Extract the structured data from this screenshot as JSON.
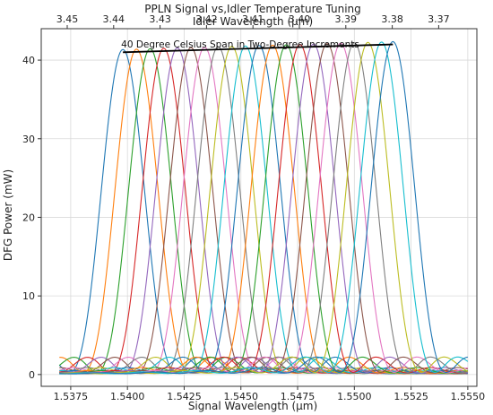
{
  "chart_data": {
    "type": "line",
    "title": "PPLN Signal vs,Idler Temperature Tuning",
    "top_axis_label": "Idler Wavelength (μm)",
    "xlabel": "Signal Wavelength (μm)",
    "ylabel": "DFG Power (mW)",
    "annotation": "40 Degree Celsius Span in Two-Degree Increments",
    "xlim": [
      1.5362,
      1.5554
    ],
    "ylim": [
      -1.5,
      44
    ],
    "x_ticks": [
      1.5375,
      1.54,
      1.5425,
      1.545,
      1.5475,
      1.55,
      1.5525,
      1.555
    ],
    "x_tick_labels": [
      "1.5375",
      "1.5400",
      "1.5425",
      "1.5450",
      "1.5475",
      "1.5500",
      "1.5525",
      "1.5550"
    ],
    "y_ticks": [
      0,
      10,
      20,
      30,
      40
    ],
    "y_tick_labels": [
      "0",
      "10",
      "20",
      "30",
      "40"
    ],
    "top_ticks": [
      3.45,
      3.44,
      3.43,
      3.42,
      3.41,
      3.4,
      3.39,
      3.38,
      3.37
    ],
    "top_tick_labels": [
      "3.45",
      "3.44",
      "3.43",
      "3.42",
      "3.41",
      "3.40",
      "3.39",
      "3.38",
      "3.37"
    ],
    "grid": true,
    "x_data_range": [
      1.537,
      1.555
    ],
    "colors": [
      "#1f77b4",
      "#ff7f0e",
      "#2ca02c",
      "#d62728",
      "#9467bd",
      "#8c564b",
      "#e377c2",
      "#7f7f7f",
      "#bcbd22",
      "#17becf"
    ],
    "envelope_color": "#000000",
    "series": [
      {
        "peak_x": 1.5398,
        "peak_y": 41.0
      },
      {
        "peak_x": 1.5404,
        "peak_y": 41.05
      },
      {
        "peak_x": 1.541,
        "peak_y": 41.1
      },
      {
        "peak_x": 1.5416,
        "peak_y": 41.15
      },
      {
        "peak_x": 1.5422,
        "peak_y": 41.2
      },
      {
        "peak_x": 1.5428,
        "peak_y": 41.25
      },
      {
        "peak_x": 1.5434,
        "peak_y": 41.3
      },
      {
        "peak_x": 1.544,
        "peak_y": 41.35
      },
      {
        "peak_x": 1.5446,
        "peak_y": 41.4
      },
      {
        "peak_x": 1.5452,
        "peak_y": 41.45
      },
      {
        "peak_x": 1.5458,
        "peak_y": 41.5
      },
      {
        "peak_x": 1.5464,
        "peak_y": 41.55
      },
      {
        "peak_x": 1.547,
        "peak_y": 41.6
      },
      {
        "peak_x": 1.5476,
        "peak_y": 41.65
      },
      {
        "peak_x": 1.5482,
        "peak_y": 41.7
      },
      {
        "peak_x": 1.5488,
        "peak_y": 41.75
      },
      {
        "peak_x": 1.5494,
        "peak_y": 41.8
      },
      {
        "peak_x": 1.55,
        "peak_y": 41.85
      },
      {
        "peak_x": 1.5506,
        "peak_y": 41.9
      },
      {
        "peak_x": 1.5512,
        "peak_y": 41.95
      },
      {
        "peak_x": 1.5517,
        "peak_y": 42.0
      }
    ]
  }
}
